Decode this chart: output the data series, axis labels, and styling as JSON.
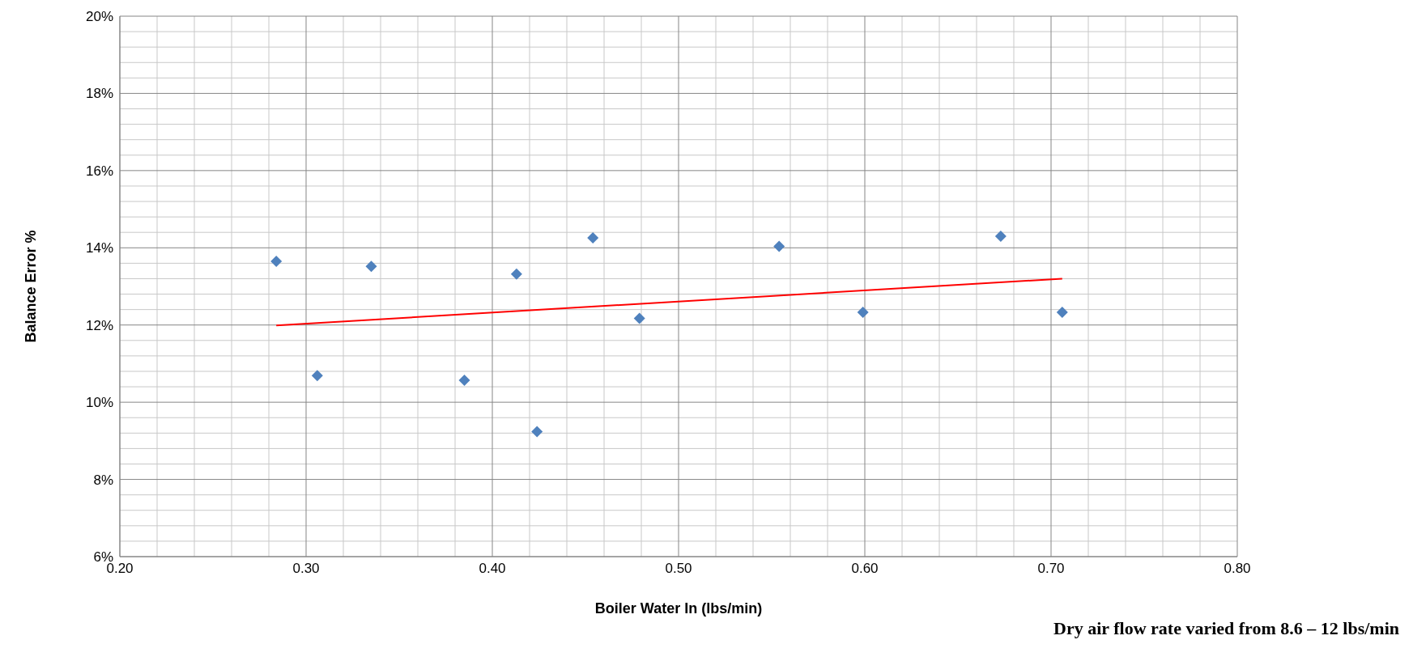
{
  "chart_data": {
    "type": "scatter",
    "xlabel": "Boiler Water In (lbs/min)",
    "ylabel": "Balance Error %",
    "annotations": [
      "Dry air flow rate varied from 8.6 – 12 lbs/min"
    ],
    "series": [
      {
        "color": "#4f81bd",
        "marker": "diamond",
        "x": [
          0.284,
          0.306,
          0.335,
          0.385,
          0.413,
          0.424,
          0.454,
          0.479,
          0.554,
          0.599,
          0.673,
          0.706
        ],
        "values": [
          13.65,
          10.69,
          13.52,
          10.57,
          13.32,
          9.24,
          14.26,
          12.17,
          14.04,
          12.33,
          14.3,
          12.33
        ]
      },
      {
        "type": "line",
        "color": "#ff0000",
        "marker": "none",
        "x": [
          0.284,
          0.706
        ],
        "values": [
          11.99,
          13.2
        ]
      }
    ],
    "xlim": [
      0.2,
      0.8
    ],
    "xticks": [
      {
        "value": 0.2,
        "label": "0.20"
      },
      {
        "value": 0.3,
        "label": "0.30"
      },
      {
        "value": 0.4,
        "label": "0.40"
      },
      {
        "value": 0.5,
        "label": "0.50"
      },
      {
        "value": 0.6,
        "label": "0.60"
      },
      {
        "value": 0.7,
        "label": "0.70"
      },
      {
        "value": 0.8,
        "label": "0.80"
      }
    ],
    "ylim": [
      6,
      20
    ],
    "yticks": [
      {
        "value": 6,
        "label": "6%"
      },
      {
        "value": 8,
        "label": "8%"
      },
      {
        "value": 10,
        "label": "10%"
      },
      {
        "value": 12,
        "label": "12%"
      },
      {
        "value": 14,
        "label": "14%"
      },
      {
        "value": 16,
        "label": "16%"
      },
      {
        "value": 18,
        "label": "18%"
      },
      {
        "value": 20,
        "label": "20%"
      }
    ],
    "grid": true
  }
}
